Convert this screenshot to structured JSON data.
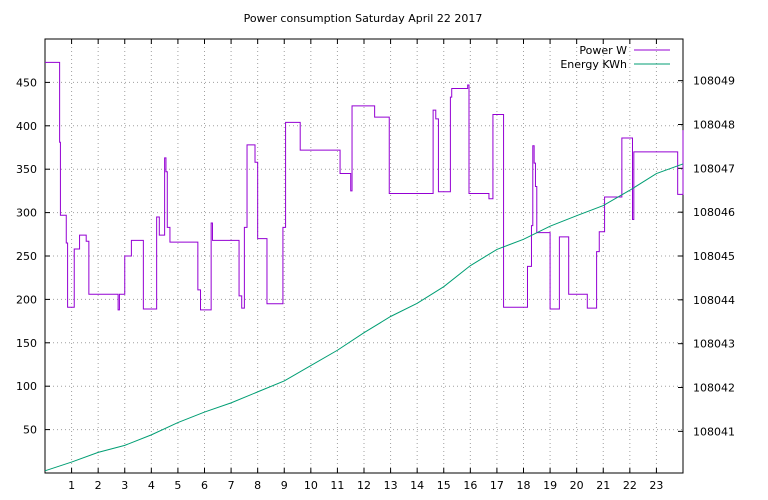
{
  "chart_data": {
    "type": "line",
    "title": "Power consumption Saturday April 22 2017",
    "xlabel": "",
    "ylabel": "",
    "xlim": [
      0,
      24
    ],
    "ylim": [
      0,
      500
    ],
    "y2lim": [
      108040.05,
      108049.95
    ],
    "grid": true,
    "legend_position": "top-right",
    "x_ticks": [
      1,
      2,
      3,
      4,
      5,
      6,
      7,
      8,
      9,
      10,
      11,
      12,
      13,
      14,
      15,
      16,
      17,
      18,
      19,
      20,
      21,
      22,
      23
    ],
    "y_ticks": [
      50,
      100,
      150,
      200,
      250,
      300,
      350,
      400,
      450
    ],
    "y2_ticks": [
      108041,
      108042,
      108043,
      108044,
      108045,
      108046,
      108047,
      108048,
      108049
    ],
    "series": [
      {
        "name": "Power W",
        "axis": "left",
        "color": "#9400d3",
        "step": true,
        "x": [
          0,
          0.5,
          0.55,
          0.58,
          0.8,
          0.85,
          0.9,
          1.1,
          1.3,
          1.55,
          1.65,
          1.7,
          2.7,
          2.75,
          2.8,
          3.0,
          3.2,
          3.25,
          3.7,
          3.8,
          4.2,
          4.25,
          4.3,
          4.5,
          4.55,
          4.6,
          4.7,
          5.75,
          5.8,
          5.85,
          6.25,
          6.3,
          7.3,
          7.35,
          7.4,
          7.5,
          7.6,
          7.9,
          8.0,
          8.35,
          8.9,
          8.95,
          9.05,
          9.1,
          9.6,
          11.1,
          11.5,
          11.55,
          12.4,
          12.95,
          13.6,
          14.6,
          14.7,
          14.8,
          15.2,
          15.25,
          15.3,
          15.9,
          15.95,
          16.6,
          16.7,
          16.85,
          17.2,
          17.25,
          18.1,
          18.15,
          18.3,
          18.35,
          18.4,
          18.45,
          18.5,
          18.95,
          19.0,
          19.3,
          19.35,
          19.7,
          20.4,
          20.75,
          20.85,
          21.05,
          21.1,
          21.7,
          22.1,
          22.15,
          22.3,
          23.75,
          23.8,
          24.0
        ],
        "y": [
          473,
          473,
          381,
          297,
          265,
          191,
          191,
          258,
          274,
          267,
          206,
          206,
          206,
          188,
          206,
          250,
          250,
          268,
          189,
          189,
          295,
          295,
          274,
          363,
          347,
          283,
          266,
          211,
          211,
          188,
          288,
          268,
          204,
          204,
          190,
          283,
          378,
          358,
          270,
          195,
          195,
          283,
          404,
          404,
          372,
          345,
          325,
          423,
          410,
          322,
          322,
          418,
          408,
          324,
          324,
          433,
          443,
          447,
          322,
          322,
          316,
          413,
          413,
          191,
          191,
          238,
          285,
          377,
          357,
          330,
          277,
          277,
          189,
          189,
          272,
          206,
          190,
          255,
          278,
          318,
          318,
          386,
          292,
          370,
          370,
          370,
          321,
          395
        ]
      },
      {
        "name": "Energy KWh",
        "axis": "right",
        "color": "#009e73",
        "x": [
          0,
          1,
          2,
          3,
          4,
          5,
          6,
          7,
          8,
          9,
          10,
          11,
          12,
          13,
          14,
          15,
          16,
          17,
          18,
          19,
          20,
          21,
          22,
          23,
          24
        ],
        "y": [
          108040.1,
          108040.3,
          108040.52,
          108040.68,
          108040.92,
          108041.2,
          108041.44,
          108041.65,
          108041.9,
          108042.15,
          108042.5,
          108042.85,
          108043.25,
          108043.62,
          108043.92,
          108044.3,
          108044.78,
          108045.15,
          108045.38,
          108045.68,
          108045.92,
          108046.15,
          108046.5,
          108046.88,
          108047.1
        ]
      }
    ]
  }
}
